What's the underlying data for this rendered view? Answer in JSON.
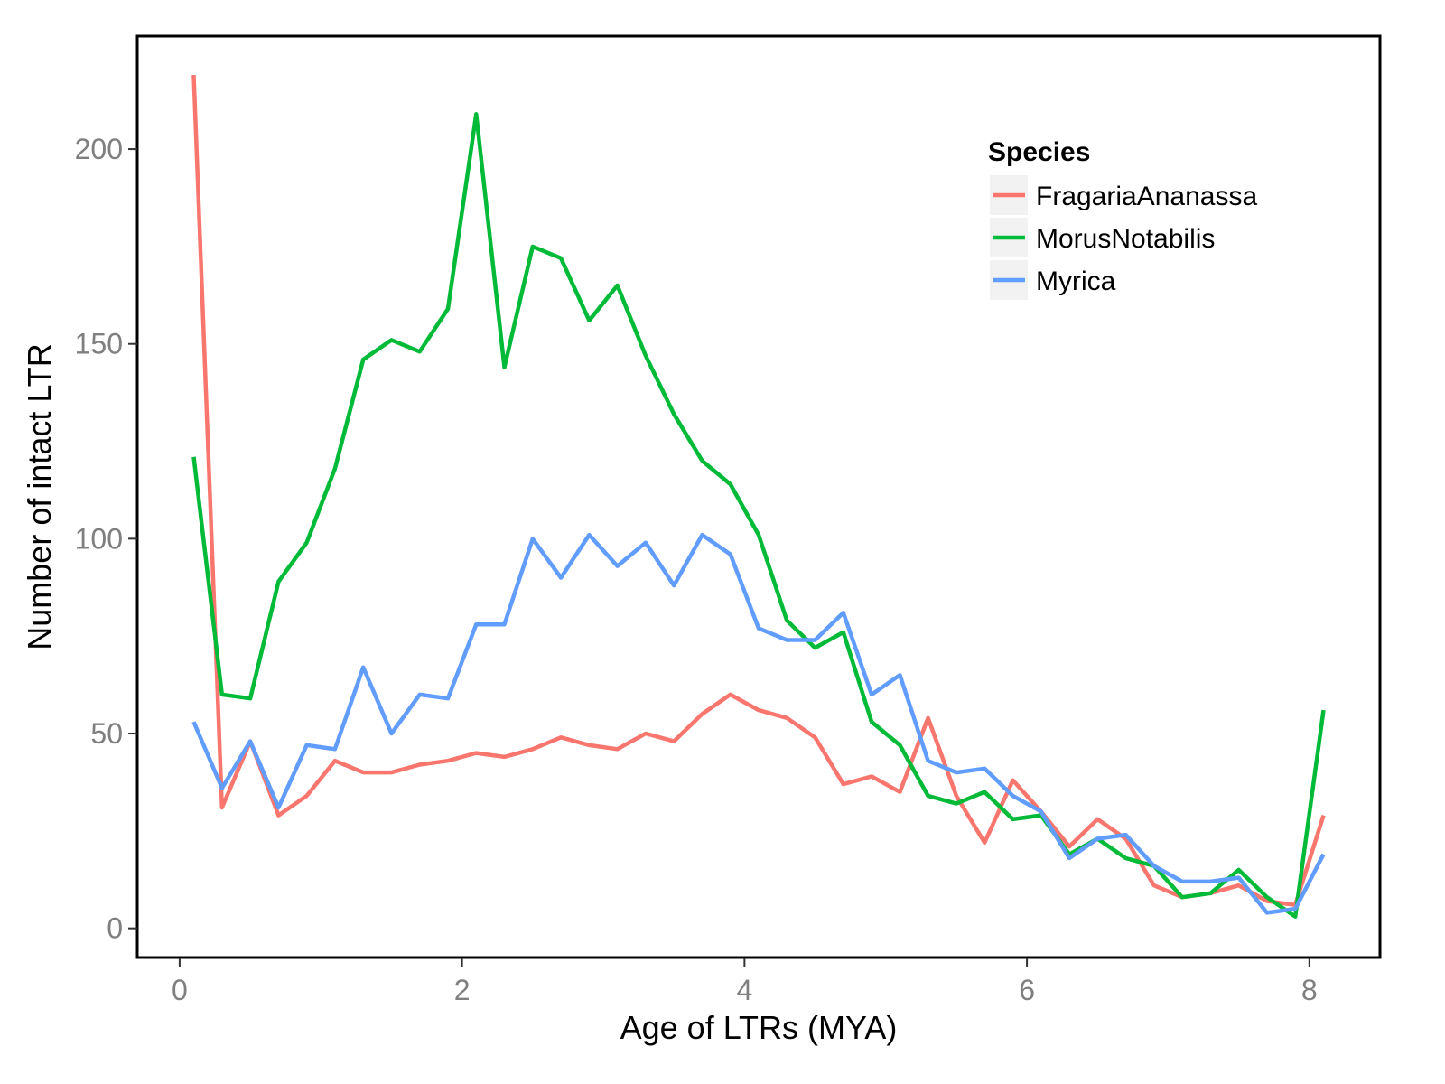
{
  "chart_data": {
    "type": "line",
    "title": "",
    "xlabel": "Age of LTRs (MYA)",
    "ylabel": "Number of intact LTR",
    "xlim": [
      -0.3,
      8.5
    ],
    "ylim": [
      -7.5,
      229
    ],
    "x_ticks": [
      0,
      2,
      4,
      6,
      8
    ],
    "y_ticks": [
      0,
      50,
      100,
      150,
      200
    ],
    "grid": false,
    "legend": {
      "title": "Species",
      "position": "top-right"
    },
    "x": [
      0.1,
      0.3,
      0.5,
      0.7,
      0.9,
      1.1,
      1.3,
      1.5,
      1.7,
      1.9,
      2.1,
      2.3,
      2.5,
      2.7,
      2.9,
      3.1,
      3.3,
      3.5,
      3.7,
      3.9,
      4.1,
      4.3,
      4.5,
      4.7,
      4.9,
      5.1,
      5.3,
      5.5,
      5.7,
      5.9,
      6.1,
      6.3,
      6.5,
      6.7,
      6.9,
      7.1,
      7.3,
      7.5,
      7.7,
      7.9,
      8.1
    ],
    "series": [
      {
        "name": "FragariaAnanassa",
        "color": "#F8766D",
        "values": [
          219,
          31,
          48,
          29,
          34,
          43,
          40,
          40,
          42,
          43,
          45,
          44,
          46,
          49,
          47,
          46,
          50,
          48,
          55,
          60,
          56,
          54,
          49,
          37,
          39,
          35,
          54,
          34,
          22,
          38,
          30,
          21,
          28,
          23,
          11,
          8,
          9,
          11,
          7,
          6,
          29
        ]
      },
      {
        "name": "MorusNotabilis",
        "color": "#00BA38",
        "values": [
          121,
          60,
          59,
          89,
          99,
          118,
          146,
          151,
          148,
          159,
          209,
          144,
          175,
          172,
          156,
          165,
          147,
          132,
          120,
          114,
          101,
          79,
          72,
          76,
          53,
          47,
          34,
          32,
          35,
          28,
          29,
          19,
          23,
          18,
          16,
          8,
          9,
          15,
          8,
          3,
          56
        ]
      },
      {
        "name": "Myrica",
        "color": "#619CFF",
        "values": [
          53,
          36,
          48,
          31,
          47,
          46,
          67,
          50,
          60,
          59,
          78,
          78,
          100,
          90,
          101,
          93,
          99,
          88,
          101,
          96,
          77,
          74,
          74,
          81,
          60,
          65,
          43,
          40,
          41,
          34,
          30,
          18,
          23,
          24,
          16,
          12,
          12,
          13,
          4,
          5,
          19
        ]
      }
    ]
  }
}
